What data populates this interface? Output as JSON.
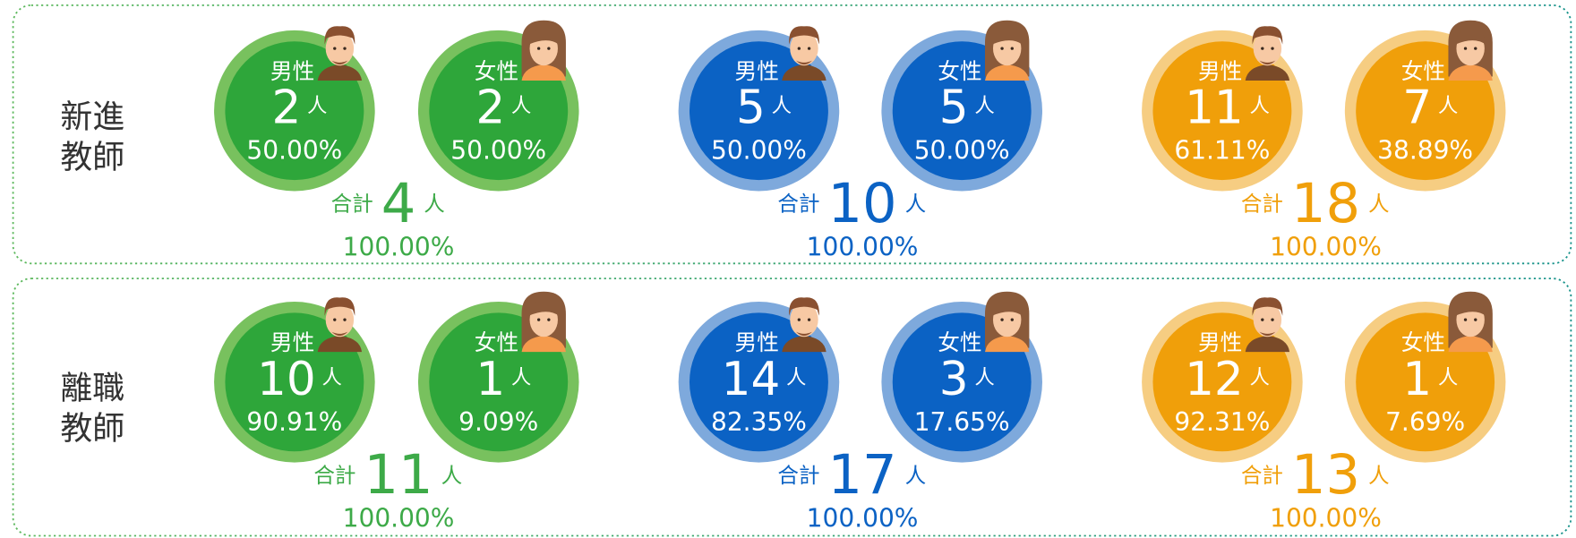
{
  "total_label": "合計",
  "unit": "人",
  "male_label": "男性",
  "female_label": "女性",
  "sections": [
    {
      "title": [
        "新進",
        "教師"
      ],
      "groups": [
        {
          "color": "#2ea63a",
          "ring": "#78c15e",
          "text_color": "#3daa48",
          "male": {
            "count": 2,
            "percent": "50.00%"
          },
          "female": {
            "count": 2,
            "percent": "50.00%"
          },
          "total": {
            "count": 4,
            "percent": "100.00%"
          }
        },
        {
          "color": "#0b62c4",
          "ring": "#7ea9dc",
          "text_color": "#0b62c4",
          "male": {
            "count": 5,
            "percent": "50.00%"
          },
          "female": {
            "count": 5,
            "percent": "50.00%"
          },
          "total": {
            "count": 10,
            "percent": "100.00%"
          }
        },
        {
          "color": "#f09f0a",
          "ring": "#f6cd82",
          "text_color": "#f09f0a",
          "male": {
            "count": 11,
            "percent": "61.11%"
          },
          "female": {
            "count": 7,
            "percent": "38.89%"
          },
          "total": {
            "count": 18,
            "percent": "100.00%"
          }
        }
      ]
    },
    {
      "title": [
        "離職",
        "教師"
      ],
      "groups": [
        {
          "color": "#2ea63a",
          "ring": "#78c15e",
          "text_color": "#3daa48",
          "male": {
            "count": 10,
            "percent": "90.91%"
          },
          "female": {
            "count": 1,
            "percent": "9.09%"
          },
          "total": {
            "count": 11,
            "percent": "100.00%"
          }
        },
        {
          "color": "#0b62c4",
          "ring": "#7ea9dc",
          "text_color": "#0b62c4",
          "male": {
            "count": 14,
            "percent": "82.35%"
          },
          "female": {
            "count": 3,
            "percent": "17.65%"
          },
          "total": {
            "count": 17,
            "percent": "100.00%"
          }
        },
        {
          "color": "#f09f0a",
          "ring": "#f6cd82",
          "text_color": "#f09f0a",
          "male": {
            "count": 12,
            "percent": "92.31%"
          },
          "female": {
            "count": 1,
            "percent": "7.69%"
          },
          "total": {
            "count": 13,
            "percent": "100.00%"
          }
        }
      ]
    }
  ]
}
